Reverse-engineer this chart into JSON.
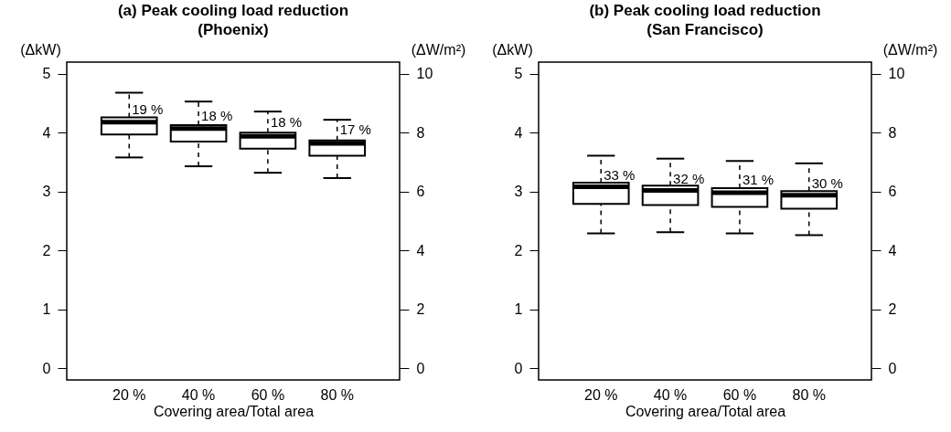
{
  "chart_data": [
    {
      "type": "box",
      "title": "(a) Peak cooling load reduction\n(Phoenix)",
      "xlabel": "Covering area/Total area",
      "ylabel": "(ΔkW)",
      "y2label": "(ΔW/m²)",
      "categories": [
        "20 %",
        "40 %",
        "60 %",
        "80 %"
      ],
      "boxes": [
        {
          "low": 3.58,
          "q1": 3.97,
          "median": 4.18,
          "q3": 4.26,
          "high": 4.68
        },
        {
          "low": 3.43,
          "q1": 3.85,
          "median": 4.07,
          "q3": 4.13,
          "high": 4.53
        },
        {
          "low": 3.32,
          "q1": 3.73,
          "median": 3.94,
          "q3": 4.0,
          "high": 4.36
        },
        {
          "low": 3.23,
          "q1": 3.61,
          "median": 3.82,
          "q3": 3.87,
          "high": 4.22
        }
      ],
      "ylim": [
        -0.2,
        5.2
      ],
      "yticks": [
        0,
        1,
        2,
        3,
        4,
        5
      ],
      "y2lim": [
        -0.4,
        10.4
      ],
      "y2ticks": [
        0,
        2,
        4,
        6,
        8,
        10
      ],
      "annotations": [
        {
          "text": "19 %",
          "x": "20 %",
          "y": 4.39
        },
        {
          "text": "18 %",
          "x": "40 %",
          "y": 4.29
        },
        {
          "text": "18 %",
          "x": "60 %",
          "y": 4.17
        },
        {
          "text": "17 %",
          "x": "80 %",
          "y": 4.05
        }
      ]
    },
    {
      "type": "box",
      "title": "(b) Peak cooling load reduction\n(San Francisco)",
      "xlabel": "Covering area/Total area",
      "ylabel": "(ΔkW)",
      "y2label": "(ΔW/m²)",
      "categories": [
        "20 %",
        "40 %",
        "60 %",
        "80 %"
      ],
      "boxes": [
        {
          "low": 2.29,
          "q1": 2.79,
          "median": 3.08,
          "q3": 3.15,
          "high": 3.61
        },
        {
          "low": 2.31,
          "q1": 2.77,
          "median": 3.02,
          "q3": 3.1,
          "high": 3.56
        },
        {
          "low": 2.29,
          "q1": 2.74,
          "median": 2.98,
          "q3": 3.06,
          "high": 3.52
        },
        {
          "low": 2.26,
          "q1": 2.71,
          "median": 2.94,
          "q3": 3.01,
          "high": 3.48
        }
      ],
      "ylim": [
        -0.2,
        5.2
      ],
      "yticks": [
        0,
        1,
        2,
        3,
        4,
        5
      ],
      "y2lim": [
        -0.4,
        10.4
      ],
      "y2ticks": [
        0,
        2,
        4,
        6,
        8,
        10
      ],
      "annotations": [
        {
          "text": "33 %",
          "x": "20 %",
          "y": 3.27
        },
        {
          "text": "32 %",
          "x": "40 %",
          "y": 3.22
        },
        {
          "text": "31 %",
          "x": "60 %",
          "y": 3.2
        },
        {
          "text": "30 %",
          "x": "80 %",
          "y": 3.14
        }
      ]
    }
  ]
}
